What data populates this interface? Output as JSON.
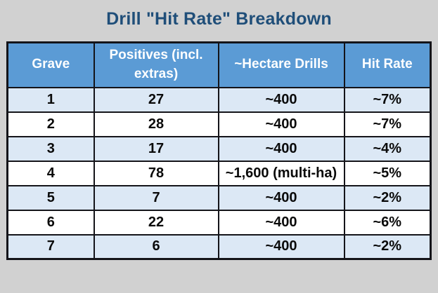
{
  "title": "Drill \"Hit Rate\" Breakdown",
  "chart_data": {
    "type": "table",
    "title": "Drill \"Hit Rate\" Breakdown",
    "columns": [
      "Grave",
      "Positives (incl. extras)",
      "~Hectare Drills",
      "Hit Rate"
    ],
    "rows": [
      [
        "1",
        "27",
        "~400",
        "~7%"
      ],
      [
        "2",
        "28",
        "~400",
        "~7%"
      ],
      [
        "3",
        "17",
        "~400",
        "~4%"
      ],
      [
        "4",
        "78",
        "~1,600 (multi-ha)",
        "~5%"
      ],
      [
        "5",
        "7",
        "~400",
        "~2%"
      ],
      [
        "6",
        "22",
        "~400",
        "~6%"
      ],
      [
        "7",
        "6",
        "~400",
        "~2%"
      ]
    ]
  },
  "colors": {
    "page_bg": "#d1d1d1",
    "title_text": "#1f4e79",
    "header_bg": "#5b9bd5",
    "header_text": "#ffffff",
    "row_alt_bg": "#dce8f5",
    "row_bg": "#ffffff",
    "cell_text": "#0a0a0a",
    "border": "#141419"
  }
}
